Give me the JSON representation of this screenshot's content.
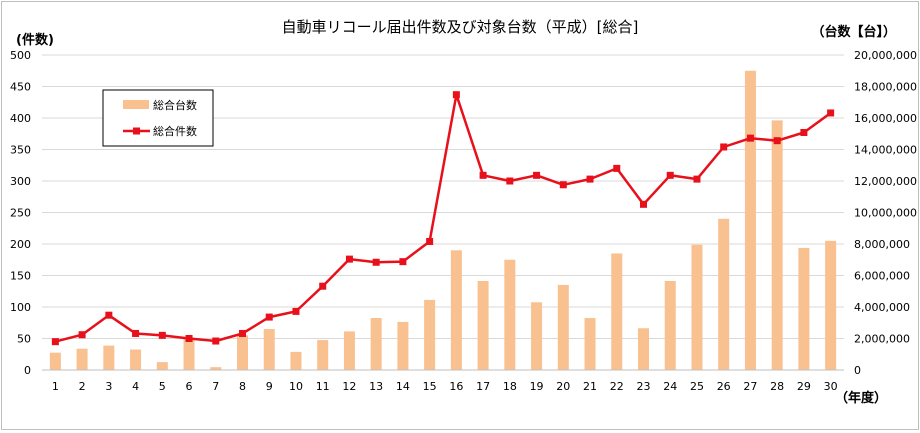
{
  "chart_data": {
    "type": "bar+line",
    "title": "自動車リコール届出件数及び対象台数（平成）[総合]",
    "y_left_label": "(件数)",
    "y_right_label": "（台数【台】）",
    "x_label": "（年度）",
    "categories": [
      "1",
      "2",
      "3",
      "4",
      "5",
      "6",
      "7",
      "8",
      "9",
      "10",
      "11",
      "12",
      "13",
      "14",
      "15",
      "16",
      "17",
      "18",
      "19",
      "20",
      "21",
      "22",
      "23",
      "24",
      "25",
      "26",
      "27",
      "28",
      "29",
      "30"
    ],
    "y_left": {
      "min": 0,
      "max": 500,
      "ticks": [
        "0",
        "50",
        "100",
        "150",
        "200",
        "250",
        "300",
        "350",
        "400",
        "450",
        "500"
      ]
    },
    "y_right": {
      "min": 0,
      "max": 20000000,
      "ticks": [
        "0",
        "2,000,000",
        "4,000,000",
        "6,000,000",
        "8,000,000",
        "10,000,000",
        "12,000,000",
        "14,000,000",
        "16,000,000",
        "18,000,000",
        "20,000,000"
      ]
    },
    "legend_position": "top-left",
    "series": [
      {
        "name": "総合台数",
        "type": "bar",
        "axis": "right",
        "color": "#f9c090",
        "values": [
          1100000,
          1350000,
          1550000,
          1300000,
          500000,
          1950000,
          180000,
          2200000,
          2600000,
          1150000,
          1900000,
          2450000,
          3300000,
          3050000,
          4450000,
          7600000,
          5650000,
          7000000,
          4300000,
          5400000,
          3300000,
          7400000,
          2650000,
          5650000,
          7950000,
          9600000,
          19000000,
          15850000,
          7750000,
          8200000
        ]
      },
      {
        "name": "総合件数",
        "type": "line",
        "axis": "left",
        "color": "#e8101a",
        "values": [
          45,
          56,
          87,
          58,
          55,
          50,
          46,
          58,
          84,
          93,
          133,
          176,
          171,
          172,
          204,
          437,
          309,
          300,
          309,
          294,
          303,
          320,
          263,
          309,
          303,
          354,
          368,
          364,
          377,
          408
        ]
      }
    ]
  }
}
